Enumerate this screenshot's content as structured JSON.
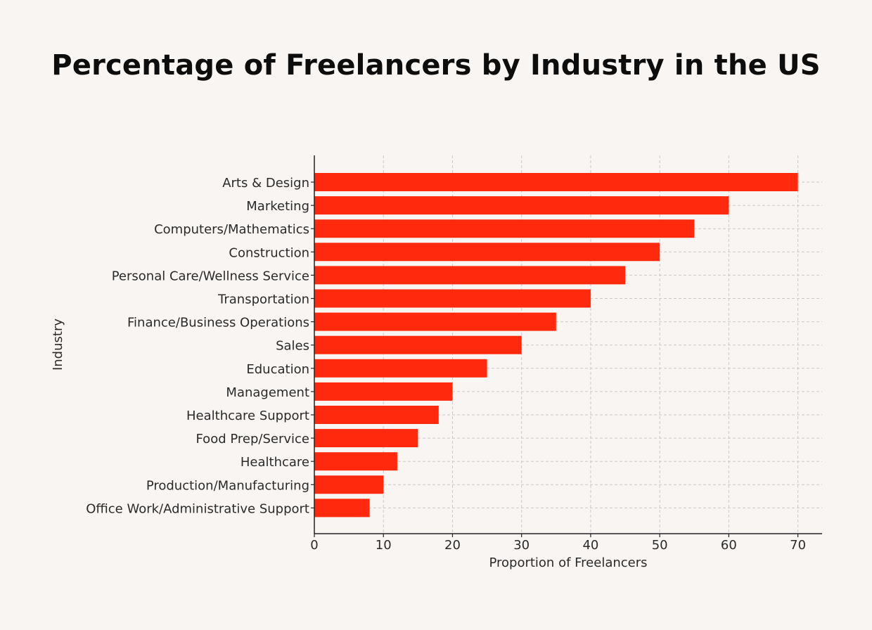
{
  "chart_data": {
    "type": "bar",
    "orientation": "horizontal",
    "title": "Percentage of Freelancers by Industry in the US",
    "xlabel": "Proportion of Freelancers",
    "ylabel": "Industry",
    "categories": [
      "Arts & Design",
      "Marketing",
      "Computers/Mathematics",
      "Construction",
      "Personal Care/Wellness Service",
      "Transportation",
      "Finance/Business Operations",
      "Sales",
      "Education",
      "Management",
      "Healthcare Support",
      "Food Prep/Service",
      "Healthcare",
      "Production/Manufacturing",
      "Office Work/Administrative Support"
    ],
    "values": [
      70,
      60,
      55,
      50,
      45,
      40,
      35,
      30,
      25,
      20,
      18,
      15,
      12,
      10,
      8
    ],
    "xlim": [
      0,
      73.5
    ],
    "xticks": [
      0,
      10,
      20,
      30,
      40,
      50,
      60,
      70
    ],
    "grid": true,
    "bar_color": "#ff2a0e"
  }
}
